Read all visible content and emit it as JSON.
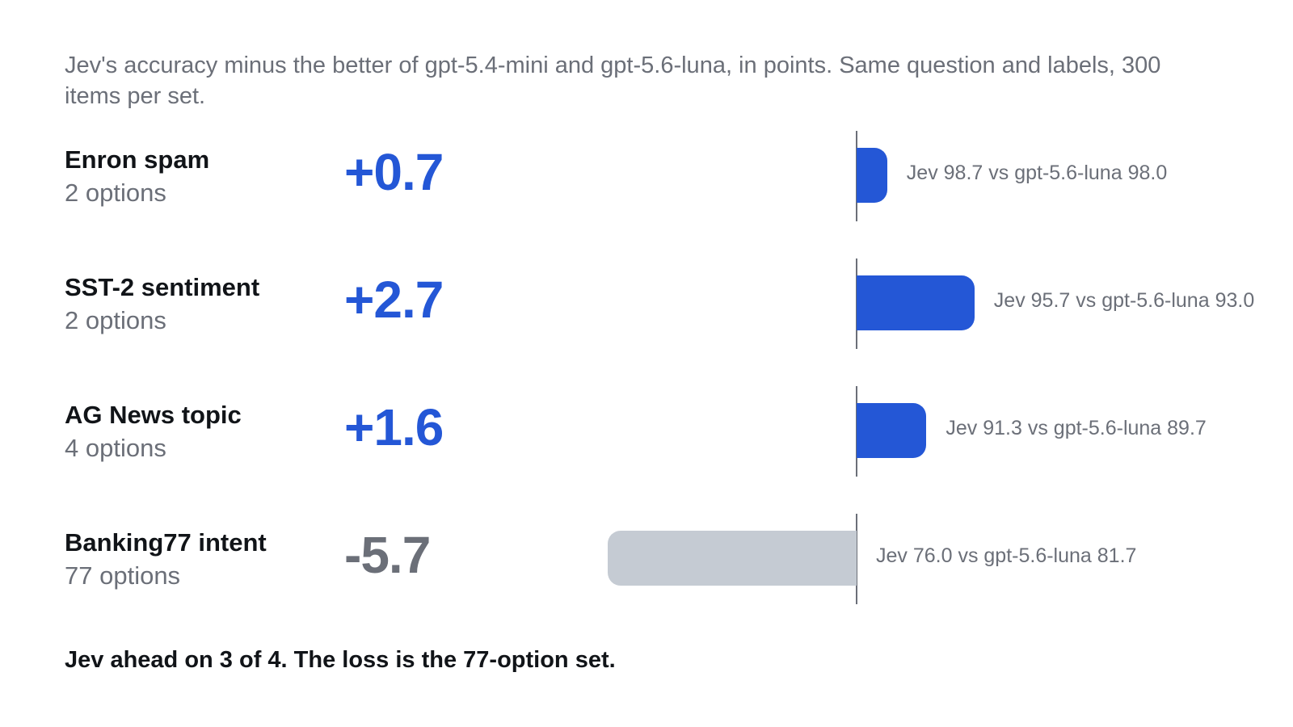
{
  "subtitle": "Jev's accuracy minus the better of gpt-5.4-mini and gpt-5.6-luna, in points. Same question and labels, 300 items per set.",
  "colors": {
    "positive": "#2457d6",
    "negative": "#c5cbd3",
    "axis": "#6b6f78",
    "muted": "#6b6f78"
  },
  "chart_data": {
    "type": "bar",
    "orientation": "horizontal",
    "baseline": 0,
    "categories": [
      "Enron spam",
      "SST-2 sentiment",
      "AG News topic",
      "Banking77 intent"
    ],
    "values": [
      0.7,
      2.7,
      1.6,
      -5.7
    ],
    "rows": [
      {
        "name": "Enron spam",
        "options": "2 options",
        "delta": "+0.7",
        "value": 0.7,
        "detail": "Jev 98.7 vs gpt-5.6-luna 98.0"
      },
      {
        "name": "SST-2 sentiment",
        "options": "2 options",
        "delta": "+2.7",
        "value": 2.7,
        "detail": "Jev 95.7 vs gpt-5.6-luna 93.0"
      },
      {
        "name": "AG News topic",
        "options": "4 options",
        "delta": "+1.6",
        "value": 1.6,
        "detail": "Jev 91.3 vs gpt-5.6-luna 89.7"
      },
      {
        "name": "Banking77 intent",
        "options": "77 options",
        "delta": "-5.7",
        "value": -5.7,
        "detail": "Jev 76.0 vs gpt-5.6-luna 81.7"
      }
    ]
  },
  "footnote": "Jev ahead on 3 of 4. The loss is the 77-option set."
}
